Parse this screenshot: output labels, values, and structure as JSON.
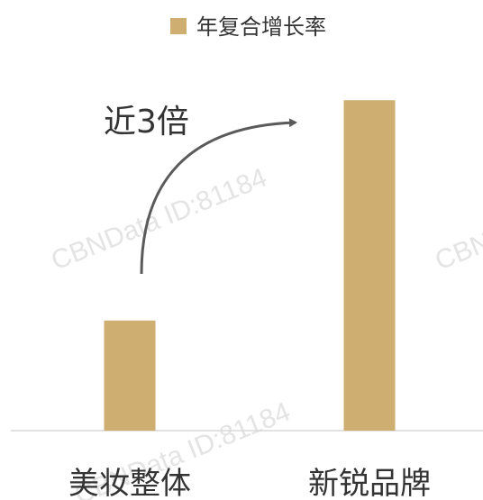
{
  "chart_data": {
    "type": "bar",
    "categories": [
      "美妆整体",
      "新锐品牌"
    ],
    "series": [
      {
        "name": "年复合增长率",
        "values": [
          1.0,
          3.0
        ],
        "color": "#CFAE72"
      }
    ],
    "ylim": [
      0,
      3.1
    ],
    "grid": false,
    "legend_position": "top-center",
    "annotation": {
      "text": "近3倍",
      "type": "curved-arrow"
    }
  },
  "watermark": {
    "text": "CBNData ID:81184"
  }
}
